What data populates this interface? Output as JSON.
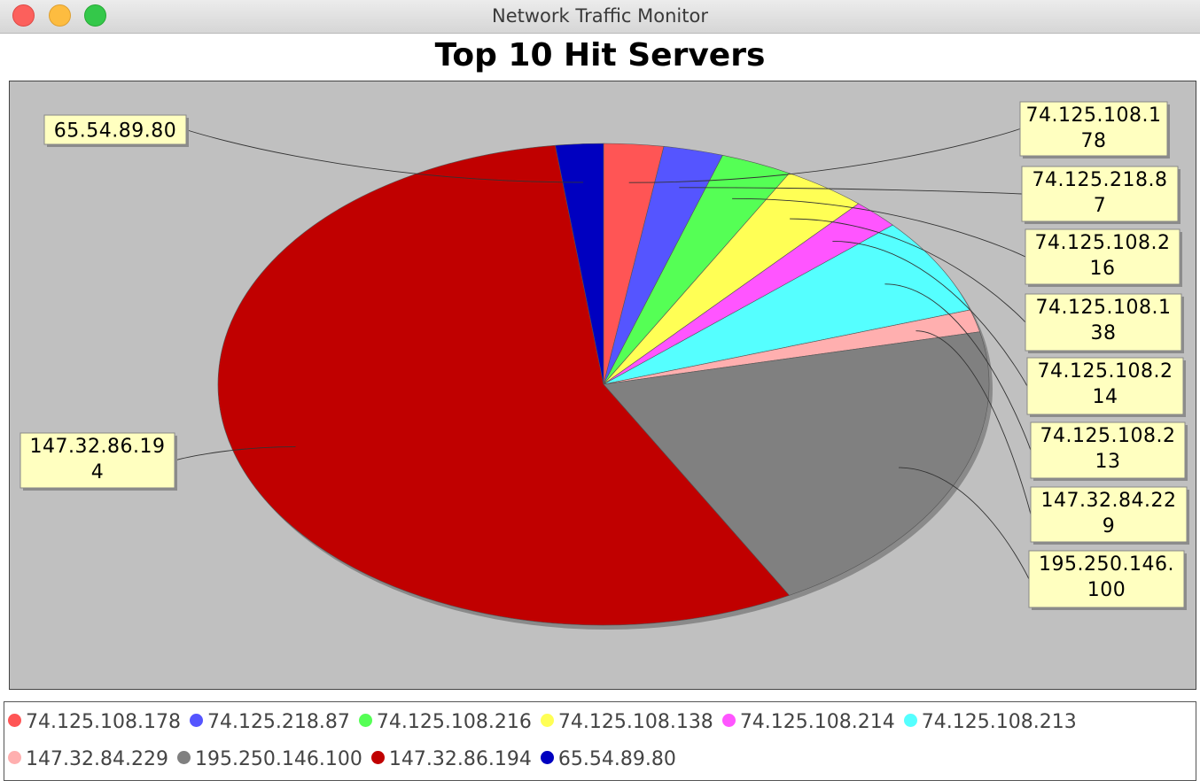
{
  "window": {
    "title": "Network Traffic Monitor"
  },
  "chart_data": {
    "type": "pie",
    "title": "Top 10 Hit Servers",
    "slices": [
      {
        "label": "74.125.108.178",
        "value": 2.5,
        "color": "#ff5555",
        "callout": [
          "74.125.108.1",
          "78"
        ]
      },
      {
        "label": "74.125.218.87",
        "value": 2.5,
        "color": "#5555ff",
        "callout": [
          "74.125.218.8",
          "7"
        ]
      },
      {
        "label": "74.125.108.216",
        "value": 3.0,
        "color": "#55ff55",
        "callout": [
          "74.125.108.2",
          "16"
        ]
      },
      {
        "label": "74.125.108.138",
        "value": 3.5,
        "color": "#ffff55",
        "callout": [
          "74.125.108.1",
          "38"
        ]
      },
      {
        "label": "74.125.108.214",
        "value": 2.0,
        "color": "#ff55ff",
        "callout": [
          "74.125.108.2",
          "14"
        ]
      },
      {
        "label": "74.125.108.213",
        "value": 6.5,
        "color": "#55ffff",
        "callout": [
          "74.125.108.2",
          "13"
        ]
      },
      {
        "label": "147.32.84.229",
        "value": 1.5,
        "color": "#ffafaf",
        "callout": [
          "147.32.84.22",
          "9"
        ]
      },
      {
        "label": "195.250.146.100",
        "value": 20.5,
        "color": "#808080",
        "callout": [
          "195.250.146.",
          "100"
        ]
      },
      {
        "label": "147.32.86.194",
        "value": 56.0,
        "color": "#c00000",
        "callout": [
          "147.32.86.19",
          "4"
        ]
      },
      {
        "label": "65.54.89.80",
        "value": 2.0,
        "color": "#0000c0",
        "callout": [
          "65.54.89.80"
        ]
      }
    ],
    "legend_position": "bottom"
  }
}
